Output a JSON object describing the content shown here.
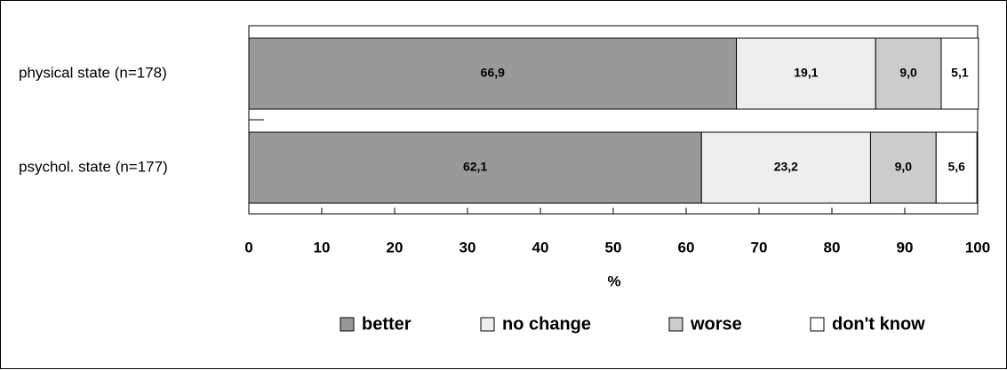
{
  "chart_data": {
    "type": "bar",
    "orientation": "horizontal",
    "stacked": true,
    "categories": [
      "physical state (n=178)",
      "psychol. state (n=177)"
    ],
    "series": [
      {
        "name": "better",
        "values": [
          66.9,
          62.1
        ],
        "labels": [
          "66,9",
          "62,1"
        ],
        "color": "#999999"
      },
      {
        "name": "no change",
        "values": [
          19.1,
          23.2
        ],
        "labels": [
          "19,1",
          "23,2"
        ],
        "color": "#eeeeee"
      },
      {
        "name": "worse",
        "values": [
          9.0,
          9.0
        ],
        "labels": [
          "9,0",
          "9,0"
        ],
        "color": "#cccccc"
      },
      {
        "name": "don't know",
        "values": [
          5.1,
          5.6
        ],
        "labels": [
          "5,1",
          "5,6"
        ],
        "color": "#ffffff"
      }
    ],
    "xlabel": "%",
    "xlim": [
      0,
      100
    ],
    "xticks": [
      "0",
      "10",
      "20",
      "30",
      "40",
      "50",
      "60",
      "70",
      "80",
      "90",
      "100"
    ],
    "legend_position": "bottom",
    "grid": false
  }
}
